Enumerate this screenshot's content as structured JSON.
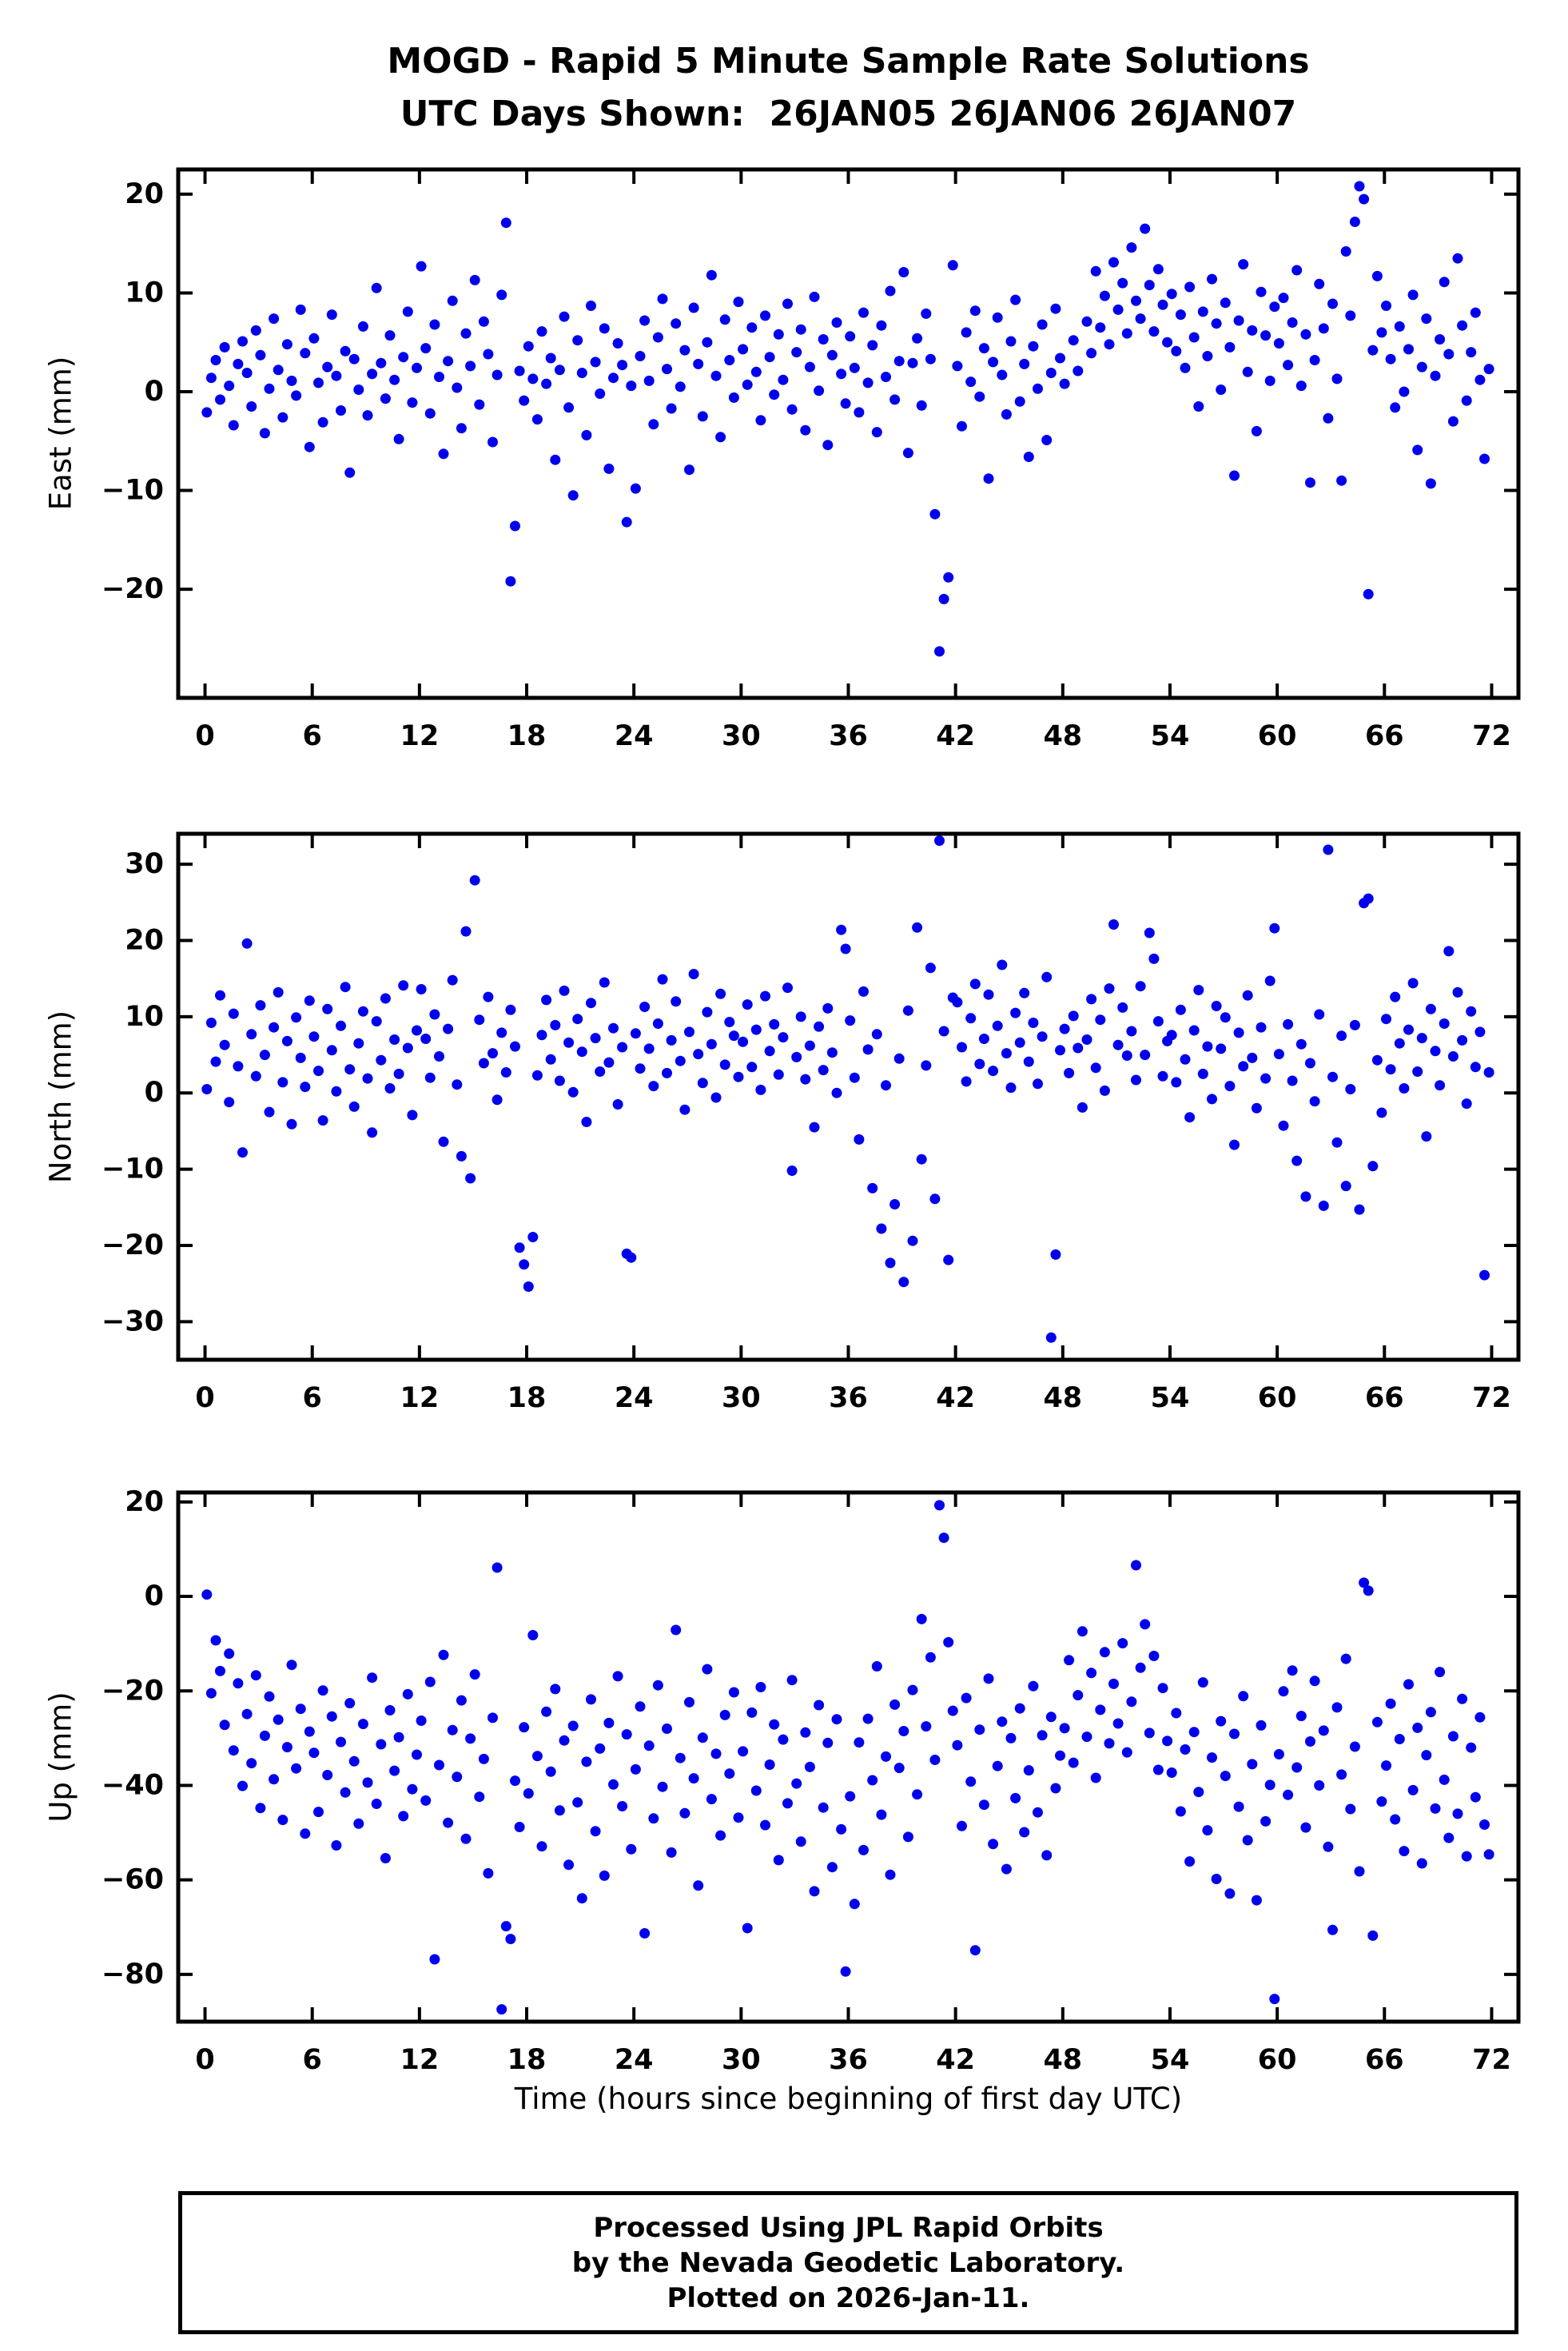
{
  "title": {
    "line1": "MOGD - Rapid 5 Minute Sample Rate Solutions",
    "line2": "UTC Days Shown:  26JAN05 26JAN06 26JAN07"
  },
  "xlabel": "Time (hours since beginning of first day UTC)",
  "footer": {
    "line1": "Processed Using JPL Rapid Orbits",
    "line2": "by the Nevada Geodetic Laboratory.",
    "line3": "Plotted on 2026-Jan-11."
  },
  "point_color": "#0000ee",
  "chart_data": [
    {
      "type": "scatter",
      "name": "east",
      "ylabel": "East (mm)",
      "xlim": [
        -1.5,
        73.5
      ],
      "ylim": [
        -31,
        22.5
      ],
      "xticks": [
        0,
        6,
        12,
        18,
        24,
        30,
        36,
        42,
        48,
        54,
        60,
        66,
        72
      ],
      "yticks": [
        20,
        10,
        0,
        -10,
        -20
      ],
      "x_start": 0.1,
      "x_step": 0.25,
      "values": [
        -2.1,
        1.4,
        3.2,
        -0.8,
        4.5,
        0.6,
        -3.4,
        2.8,
        5.1,
        1.9,
        -1.5,
        6.2,
        3.7,
        -4.2,
        0.3,
        7.4,
        2.2,
        -2.6,
        4.8,
        1.1,
        -0.4,
        8.3,
        3.9,
        -5.6,
        5.4,
        0.9,
        -3.1,
        2.5,
        7.8,
        1.6,
        -1.9,
        4.1,
        -8.2,
        3.3,
        0.2,
        6.6,
        -2.4,
        1.8,
        10.5,
        2.9,
        -0.7,
        5.7,
        1.2,
        -4.8,
        3.5,
        8.1,
        -1.1,
        2.4,
        12.7,
        4.4,
        -2.2,
        6.8,
        1.5,
        -6.3,
        3.1,
        9.2,
        0.4,
        -3.7,
        5.9,
        2.6,
        11.3,
        -1.3,
        7.1,
        3.8,
        -5.1,
        1.7,
        9.8,
        17.1,
        -19.2,
        -13.6,
        2.1,
        -0.9,
        4.6,
        1.3,
        -2.8,
        6.1,
        0.8,
        3.4,
        -6.9,
        2.2,
        7.6,
        -1.6,
        -10.5,
        5.2,
        1.9,
        -4.4,
        8.7,
        3.0,
        -0.2,
        6.4,
        -7.8,
        1.4,
        4.9,
        2.7,
        -13.2,
        0.6,
        -9.8,
        3.6,
        7.2,
        1.1,
        -3.3,
        5.5,
        9.4,
        2.3,
        -1.7,
        6.9,
        0.5,
        4.2,
        -7.9,
        8.5,
        2.8,
        -2.5,
        5.0,
        11.8,
        1.6,
        -4.6,
        7.3,
        3.2,
        -0.6,
        9.1,
        4.3,
        0.7,
        6.5,
        2.0,
        -2.9,
        7.7,
        3.5,
        -0.3,
        5.8,
        1.2,
        8.9,
        -1.8,
        4.0,
        6.3,
        -3.9,
        2.5,
        9.6,
        0.1,
        5.3,
        -5.4,
        3.7,
        7.0,
        1.8,
        -1.2,
        5.6,
        2.4,
        -2.1,
        8.0,
        0.9,
        4.7,
        -4.1,
        6.7,
        1.5,
        10.2,
        -0.8,
        3.1,
        12.1,
        -6.2,
        2.9,
        5.4,
        -1.4,
        7.9,
        3.3,
        -12.4,
        -26.3,
        -21.0,
        -18.8,
        12.8,
        2.6,
        -3.5,
        6.0,
        1.0,
        8.2,
        -0.5,
        4.4,
        -8.8,
        3.0,
        7.5,
        1.7,
        -2.3,
        5.1,
        9.3,
        -1.0,
        2.8,
        -6.6,
        4.6,
        0.3,
        6.8,
        -4.9,
        1.9,
        8.4,
        3.4,
        0.8,
        null,
        5.2,
        2.1,
        null,
        7.1,
        3.9,
        12.2,
        6.5,
        9.7,
        4.8,
        13.1,
        8.3,
        11.0,
        5.9,
        14.6,
        9.2,
        7.4,
        16.5,
        10.8,
        6.1,
        12.4,
        8.8,
        5.0,
        9.9,
        4.1,
        7.8,
        2.4,
        10.6,
        5.5,
        -1.5,
        8.1,
        3.6,
        11.4,
        6.9,
        0.2,
        9.0,
        4.5,
        -8.5,
        7.2,
        12.9,
        2.0,
        6.2,
        -4.0,
        10.1,
        5.7,
        1.1,
        8.6,
        4.9,
        9.5,
        2.7,
        7.0,
        12.3,
        0.6,
        5.8,
        -9.2,
        3.2,
        10.9,
        6.4,
        -2.7,
        8.9,
        1.3,
        -9.0,
        14.2,
        7.7,
        17.2,
        20.8,
        19.5,
        -20.5,
        4.2,
        11.7,
        6.0,
        8.7,
        3.3,
        -1.6,
        6.6,
        0.0,
        4.3,
        9.8,
        -5.9,
        2.5,
        7.4,
        -9.3,
        1.6,
        5.3,
        11.1,
        3.8,
        -3.0,
        13.5,
        6.7,
        -0.9,
        4.0,
        8.0,
        1.2,
        -6.8,
        2.3
      ]
    },
    {
      "type": "scatter",
      "name": "north",
      "ylabel": "North (mm)",
      "xlim": [
        -1.5,
        73.5
      ],
      "ylim": [
        -35,
        34
      ],
      "xticks": [
        0,
        6,
        12,
        18,
        24,
        30,
        36,
        42,
        48,
        54,
        60,
        66,
        72
      ],
      "yticks": [
        30,
        20,
        10,
        0,
        -10,
        -20,
        -30
      ],
      "x_start": 0.1,
      "x_step": 0.25,
      "values": [
        0.5,
        9.2,
        4.1,
        12.8,
        6.3,
        -1.2,
        10.4,
        3.5,
        -7.8,
        19.6,
        7.7,
        2.2,
        11.5,
        5.0,
        -2.5,
        8.6,
        13.2,
        1.4,
        6.8,
        -4.1,
        9.9,
        4.6,
        0.8,
        12.1,
        7.4,
        2.9,
        -3.6,
        11.0,
        5.6,
        0.2,
        8.8,
        13.9,
        3.1,
        -1.8,
        6.5,
        10.7,
        1.9,
        -5.2,
        9.4,
        4.3,
        12.4,
        0.6,
        7.0,
        2.5,
        14.1,
        5.9,
        -2.9,
        8.2,
        13.6,
        7.1,
        2.0,
        10.3,
        4.8,
        -6.4,
        8.4,
        14.8,
        1.1,
        -8.3,
        21.2,
        -11.2,
        27.9,
        9.6,
        3.9,
        12.6,
        5.2,
        -0.9,
        7.9,
        2.7,
        10.9,
        6.1,
        -20.3,
        -22.5,
        -25.4,
        -18.9,
        2.3,
        7.6,
        12.2,
        4.4,
        8.9,
        1.6,
        13.4,
        6.6,
        0.1,
        9.7,
        5.4,
        -3.8,
        11.8,
        7.2,
        2.8,
        14.5,
        4.0,
        8.5,
        -1.5,
        6.0,
        -21.1,
        -21.6,
        7.8,
        3.2,
        11.3,
        5.8,
        0.9,
        9.1,
        14.9,
        2.6,
        6.9,
        12.0,
        4.2,
        -2.2,
        8.0,
        15.6,
        5.1,
        1.3,
        10.6,
        6.4,
        -0.6,
        13.0,
        3.7,
        9.3,
        7.5,
        2.1,
        6.7,
        11.6,
        3.4,
        8.3,
        0.4,
        12.7,
        5.5,
        9.0,
        2.4,
        7.3,
        13.8,
        -10.2,
        4.7,
        10.0,
        1.8,
        6.2,
        -4.5,
        8.7,
        3.0,
        11.1,
        5.3,
        0.0,
        21.4,
        18.9,
        9.5,
        2.0,
        -6.1,
        13.3,
        5.7,
        -12.5,
        7.7,
        -17.8,
        1.0,
        -22.3,
        -14.6,
        4.5,
        -24.8,
        10.8,
        -19.4,
        21.7,
        -8.7,
        3.6,
        16.4,
        -13.9,
        33.1,
        8.1,
        -21.9,
        12.5,
        11.9,
        6.0,
        1.5,
        9.8,
        14.3,
        3.8,
        7.1,
        12.9,
        2.9,
        8.8,
        16.8,
        5.2,
        0.7,
        10.5,
        6.6,
        13.1,
        4.1,
        9.2,
        1.2,
        7.4,
        15.2,
        -32.1,
        -21.2,
        5.6,
        8.4,
        2.6,
        10.1,
        5.9,
        -1.9,
        7.0,
        12.3,
        3.3,
        9.6,
        0.3,
        13.7,
        22.1,
        6.3,
        11.2,
        4.9,
        8.1,
        1.7,
        14.0,
        5.0,
        21.0,
        17.6,
        9.4,
        2.2,
        6.8,
        7.6,
        1.4,
        10.9,
        4.4,
        -3.2,
        8.2,
        13.5,
        2.5,
        6.1,
        -0.8,
        11.4,
        5.8,
        9.9,
        0.9,
        -6.8,
        7.9,
        3.5,
        12.8,
        4.6,
        -2.0,
        8.6,
        1.9,
        14.7,
        21.6,
        5.1,
        -4.3,
        9.0,
        1.6,
        -8.9,
        6.4,
        -13.6,
        3.9,
        -1.1,
        10.3,
        -14.8,
        31.9,
        2.1,
        -6.5,
        7.5,
        -12.2,
        0.5,
        8.9,
        -15.3,
        24.9,
        25.5,
        -9.6,
        4.3,
        -2.6,
        9.7,
        3.1,
        12.6,
        6.5,
        0.6,
        8.3,
        14.4,
        2.8,
        7.2,
        -5.7,
        11.0,
        5.5,
        1.0,
        9.1,
        18.6,
        4.8,
        13.2,
        6.9,
        -1.4,
        10.7,
        3.4,
        8.0,
        -23.9,
        2.7
      ]
    },
    {
      "type": "scatter",
      "name": "up",
      "ylabel": "Up (mm)",
      "xlim": [
        -1.5,
        73.5
      ],
      "ylim": [
        -90,
        22
      ],
      "xticks": [
        0,
        6,
        12,
        18,
        24,
        30,
        36,
        42,
        48,
        54,
        60,
        66,
        72
      ],
      "yticks": [
        20,
        0,
        -20,
        -40,
        -60,
        -80
      ],
      "x_start": 0.1,
      "x_step": 0.25,
      "values": [
        0.4,
        -20.5,
        -9.3,
        -15.8,
        -27.2,
        -12.1,
        -32.6,
        -18.4,
        -40.1,
        -24.9,
        -35.3,
        -16.7,
        -44.8,
        -29.5,
        -21.2,
        -38.7,
        -26.1,
        -47.3,
        -31.9,
        -14.5,
        -36.4,
        -23.8,
        -50.2,
        -28.6,
        -33.1,
        -45.6,
        -19.9,
        -37.8,
        -25.4,
        -52.7,
        -30.8,
        -41.5,
        -22.6,
        -34.9,
        -48.1,
        -27.0,
        -39.4,
        -17.2,
        -43.9,
        -31.3,
        -55.4,
        -24.1,
        -36.9,
        -29.8,
        -46.5,
        -20.7,
        -40.8,
        -33.5,
        -26.3,
        -43.2,
        -18.1,
        -76.8,
        -35.7,
        -12.4,
        -47.9,
        -28.3,
        -38.2,
        -22.0,
        -51.3,
        -30.1,
        -16.5,
        -42.4,
        -34.4,
        -58.6,
        -25.7,
        6.1,
        -87.4,
        -69.8,
        -72.5,
        -39.0,
        -48.8,
        -27.7,
        -41.7,
        -8.2,
        -33.8,
        -52.9,
        -24.4,
        -37.1,
        -19.6,
        -45.3,
        -30.5,
        -56.8,
        -27.4,
        -43.6,
        -63.9,
        -35.0,
        -21.8,
        -49.7,
        -32.2,
        -59.1,
        -26.8,
        -39.8,
        -16.9,
        -44.4,
        -29.2,
        -53.5,
        -36.6,
        -23.3,
        -71.3,
        -31.6,
        -47.0,
        -18.8,
        -40.3,
        -28.0,
        -54.2,
        -7.1,
        -34.2,
        -45.9,
        -22.4,
        -38.5,
        -61.2,
        -29.9,
        -15.4,
        -42.9,
        -33.3,
        -50.6,
        -25.1,
        -37.5,
        -20.3,
        -46.8,
        -32.8,
        -70.2,
        -24.6,
        -41.1,
        -19.2,
        -48.4,
        -35.6,
        -27.1,
        -55.8,
        -30.3,
        -43.8,
        -17.7,
        -39.6,
        -51.9,
        -28.8,
        -36.1,
        -62.4,
        -23.0,
        -44.7,
        -31.0,
        -57.3,
        -26.0,
        -49.3,
        -79.4,
        -42.3,
        -65.1,
        -30.9,
        -53.7,
        -25.9,
        -38.9,
        -14.8,
        -46.2,
        -33.9,
        -58.9,
        -22.9,
        -36.3,
        -28.5,
        -50.9,
        -19.8,
        -41.9,
        -4.8,
        -27.5,
        -12.9,
        -34.6,
        19.3,
        12.4,
        -9.7,
        -24.2,
        -31.5,
        -48.6,
        -21.5,
        -39.2,
        -74.9,
        -28.2,
        -44.1,
        -17.4,
        -52.4,
        -35.9,
        -26.5,
        -57.7,
        -30.0,
        -42.7,
        -23.7,
        -49.9,
        -36.8,
        -19.0,
        -45.7,
        -29.4,
        -54.8,
        -25.5,
        -40.6,
        -33.7,
        -27.9,
        -13.5,
        -35.2,
        -20.9,
        -7.4,
        -29.7,
        -16.2,
        -38.4,
        -24.0,
        -11.8,
        -31.1,
        -18.5,
        -26.9,
        -9.9,
        -33.0,
        -22.3,
        6.6,
        -15.1,
        -5.9,
        -28.9,
        -12.6,
        -36.7,
        -19.4,
        -30.6,
        -37.3,
        -24.7,
        -45.5,
        -32.4,
        -56.1,
        -28.7,
        -41.4,
        -18.2,
        -49.5,
        -34.1,
        -59.8,
        -26.4,
        -38.0,
        -62.9,
        -29.1,
        -44.5,
        -21.1,
        -51.6,
        -35.5,
        -64.3,
        -27.3,
        -47.6,
        -39.9,
        -85.2,
        -33.4,
        -20.1,
        -42.0,
        -15.7,
        -36.2,
        -25.3,
        -48.9,
        -30.7,
        -17.9,
        -40.0,
        -28.4,
        -53.0,
        -70.6,
        -23.5,
        -37.7,
        -13.2,
        -45.0,
        -31.8,
        -58.2,
        2.9,
        1.2,
        -71.8,
        -26.6,
        -43.4,
        -35.8,
        -22.7,
        -47.2,
        -30.2,
        -53.9,
        -18.6,
        -41.0,
        -27.8,
        -56.5,
        -33.6,
        -24.5,
        -44.9,
        -16.0,
        -38.8,
        -51.1,
        -29.6,
        -46.0,
        -21.7,
        -55.0,
        -32.0,
        -42.5,
        -25.6,
        -48.3,
        -54.6
      ]
    }
  ]
}
